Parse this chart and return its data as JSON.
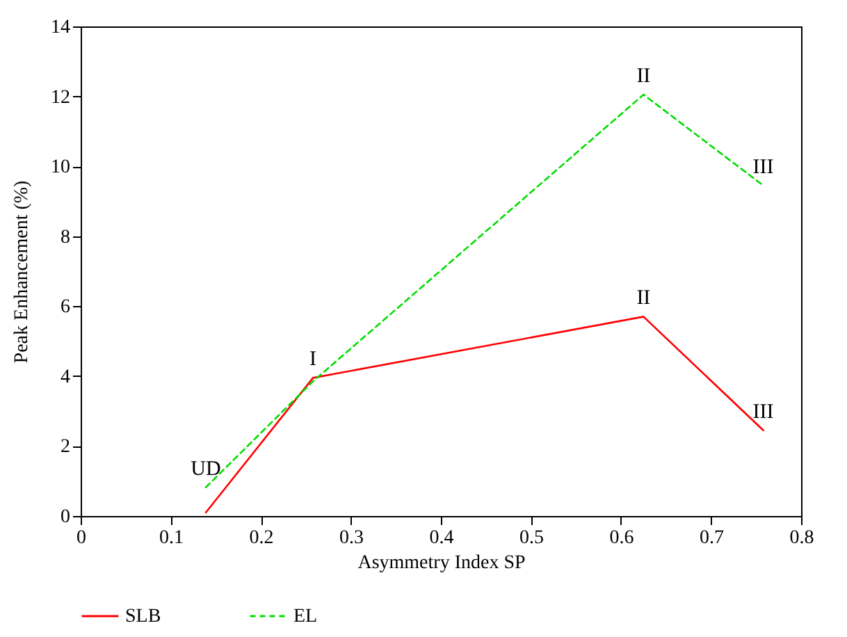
{
  "chart_data": {
    "type": "line",
    "xlabel": "Asymmetry Index SP",
    "ylabel": "Peak Enhancement (%)",
    "xlim": [
      0,
      0.8
    ],
    "xticks": [
      0,
      0.1,
      0.2,
      0.3,
      0.4,
      0.5,
      0.6,
      0.7,
      0.8
    ],
    "ylim": [
      0,
      14
    ],
    "yticks": [
      0,
      2,
      4,
      6,
      8,
      10,
      12,
      14
    ],
    "grid": false,
    "legend": "bottom",
    "marker": "none",
    "series": [
      {
        "name": "SLB",
        "color": "#ff0000",
        "line_style": "solid",
        "x": [
          0.139,
          0.258,
          0.625,
          0.758
        ],
        "values": [
          0.1,
          3.95,
          5.7,
          2.45
        ]
      },
      {
        "name": "EL",
        "color": "#00dd00",
        "line_style": "dashed",
        "x": [
          0.139,
          0.258,
          0.625,
          0.758
        ],
        "values": [
          0.82,
          3.85,
          12.05,
          9.45
        ]
      }
    ],
    "annotations": [
      {
        "text": "UD",
        "x": 0.139,
        "y": 0.82
      },
      {
        "text": "I",
        "x": 0.258,
        "y": 3.95
      },
      {
        "text": "II",
        "x": 0.625,
        "y": 5.7
      },
      {
        "text": "III",
        "x": 0.758,
        "y": 2.45
      },
      {
        "text": "II",
        "x": 0.625,
        "y": 12.05
      },
      {
        "text": "III",
        "x": 0.758,
        "y": 9.45
      }
    ]
  }
}
